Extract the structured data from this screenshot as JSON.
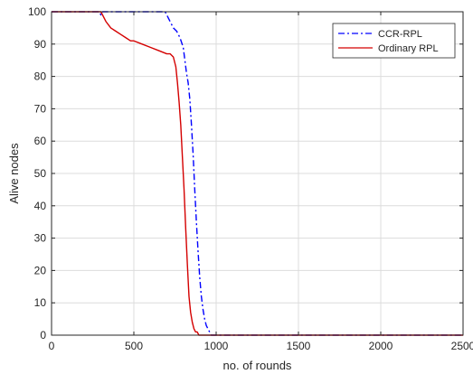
{
  "chart_data": {
    "type": "line",
    "xlabel": "no. of rounds",
    "ylabel": "Alive nodes",
    "xlim": [
      0,
      2500
    ],
    "ylim": [
      0,
      100
    ],
    "xticks": [
      0,
      500,
      1000,
      1500,
      2000,
      2500
    ],
    "yticks": [
      0,
      10,
      20,
      30,
      40,
      50,
      60,
      70,
      80,
      90,
      100
    ],
    "grid": true,
    "legend_position": "top-right",
    "series": [
      {
        "name": "CCR-RPL",
        "color": "#0000ff",
        "line_style": "dash-dot",
        "x": [
          0,
          290,
          300,
          310,
          690,
          700,
          720,
          740,
          760,
          780,
          800,
          810,
          820,
          830,
          840,
          850,
          860,
          870,
          880,
          890,
          900,
          910,
          920,
          930,
          940,
          950,
          960,
          970,
          1000,
          2500
        ],
        "y": [
          100,
          100,
          99,
          100,
          100,
          99,
          97,
          95,
          94,
          92,
          89,
          85,
          81,
          78,
          73,
          65,
          56,
          45,
          35,
          26,
          18,
          12,
          8,
          5,
          3,
          2,
          1,
          0,
          0,
          0
        ]
      },
      {
        "name": "Ordinary RPL",
        "color": "#d40000",
        "line_style": "solid",
        "x": [
          0,
          300,
          330,
          360,
          390,
          420,
          450,
          480,
          500,
          550,
          600,
          650,
          700,
          720,
          740,
          755,
          765,
          775,
          785,
          795,
          805,
          815,
          825,
          835,
          845,
          855,
          865,
          875,
          885,
          895,
          905,
          915,
          930,
          960,
          1000,
          2500
        ],
        "y": [
          100,
          100,
          97,
          95,
          94,
          93,
          92,
          91,
          91,
          90,
          89,
          88,
          87,
          87,
          86,
          83,
          78,
          72,
          65,
          55,
          45,
          33,
          22,
          12,
          7,
          4,
          2,
          1,
          1,
          0,
          0,
          0,
          0,
          0,
          0,
          0
        ]
      }
    ]
  }
}
